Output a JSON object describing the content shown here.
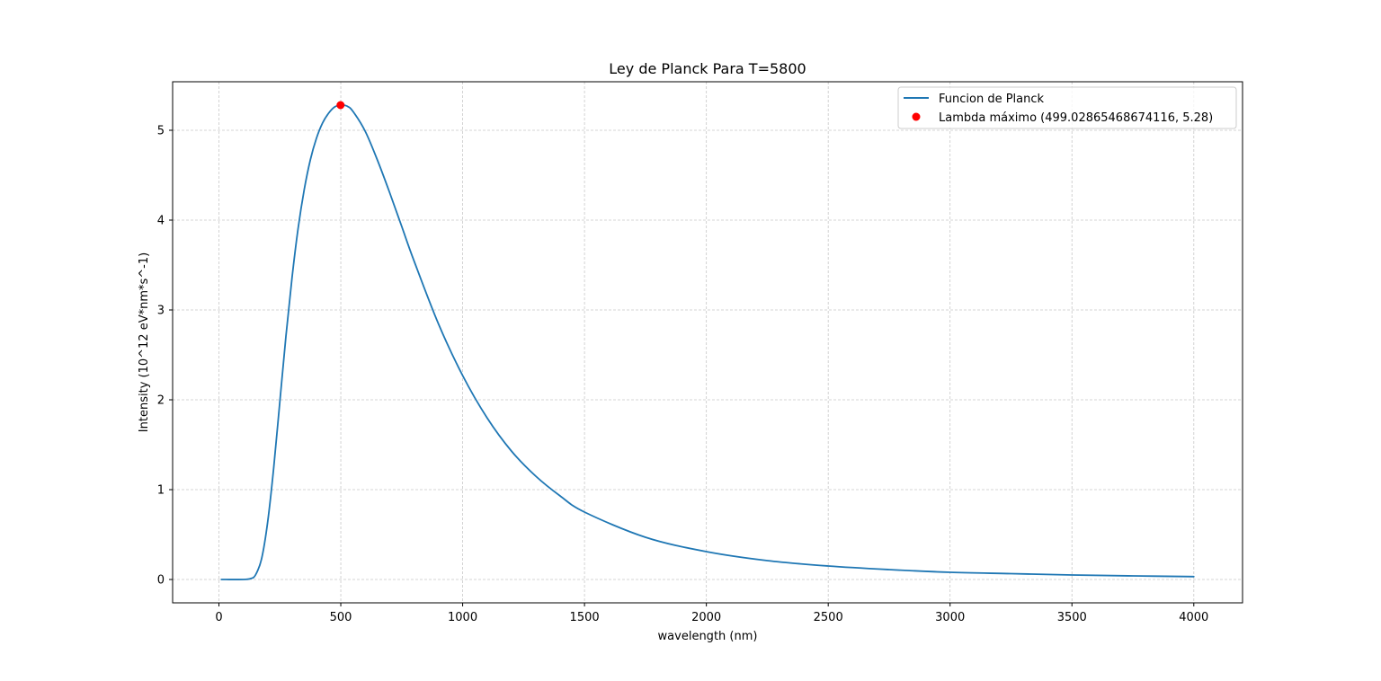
{
  "chart_data": {
    "type": "line",
    "title": "Ley de Planck Para T=5800",
    "xlabel": "wavelength (nm)",
    "ylabel": "Intensity (10^12 eV*nm*s^-1)",
    "xlim": [
      -190,
      4200
    ],
    "ylim": [
      -0.26,
      5.54
    ],
    "xticks": [
      0,
      500,
      1000,
      1500,
      2000,
      2500,
      3000,
      3500,
      4000
    ],
    "xtick_labels": [
      "0",
      "500",
      "1000",
      "1500",
      "2000",
      "2500",
      "3000",
      "3500",
      "4000"
    ],
    "yticks": [
      0,
      1,
      2,
      3,
      4,
      5
    ],
    "ytick_labels": [
      "0",
      "1",
      "2",
      "3",
      "4",
      "5"
    ],
    "grid": true,
    "legend_position": "top-right",
    "series": [
      {
        "name": "Funcion de Planck",
        "kind": "line",
        "color": "#1f77b4",
        "x": [
          10,
          100,
          130,
          150,
          175,
          200,
          225,
          250,
          275,
          300,
          325,
          350,
          375,
          400,
          425,
          450,
          475,
          500,
          525,
          550,
          600,
          650,
          700,
          750,
          800,
          900,
          1000,
          1100,
          1200,
          1300,
          1400,
          1500,
          1750,
          2000,
          2250,
          2500,
          2750,
          3000,
          3250,
          3500,
          3750,
          4000
        ],
        "y": [
          0.0,
          0.0,
          0.01,
          0.05,
          0.23,
          0.64,
          1.25,
          1.98,
          2.71,
          3.36,
          3.91,
          4.34,
          4.67,
          4.91,
          5.08,
          5.19,
          5.26,
          5.28,
          5.27,
          5.21,
          4.99,
          4.67,
          4.31,
          3.93,
          3.55,
          2.85,
          2.27,
          1.8,
          1.43,
          1.15,
          0.93,
          0.75,
          0.47,
          0.31,
          0.21,
          0.15,
          0.11,
          0.08,
          0.065,
          0.05,
          0.04,
          0.032
        ]
      },
      {
        "name": "Lambda máximo (499.02865468674116, 5.28)",
        "kind": "point",
        "color": "#ff0000",
        "x": [
          499.02865468674116
        ],
        "y": [
          5.28
        ]
      }
    ]
  }
}
